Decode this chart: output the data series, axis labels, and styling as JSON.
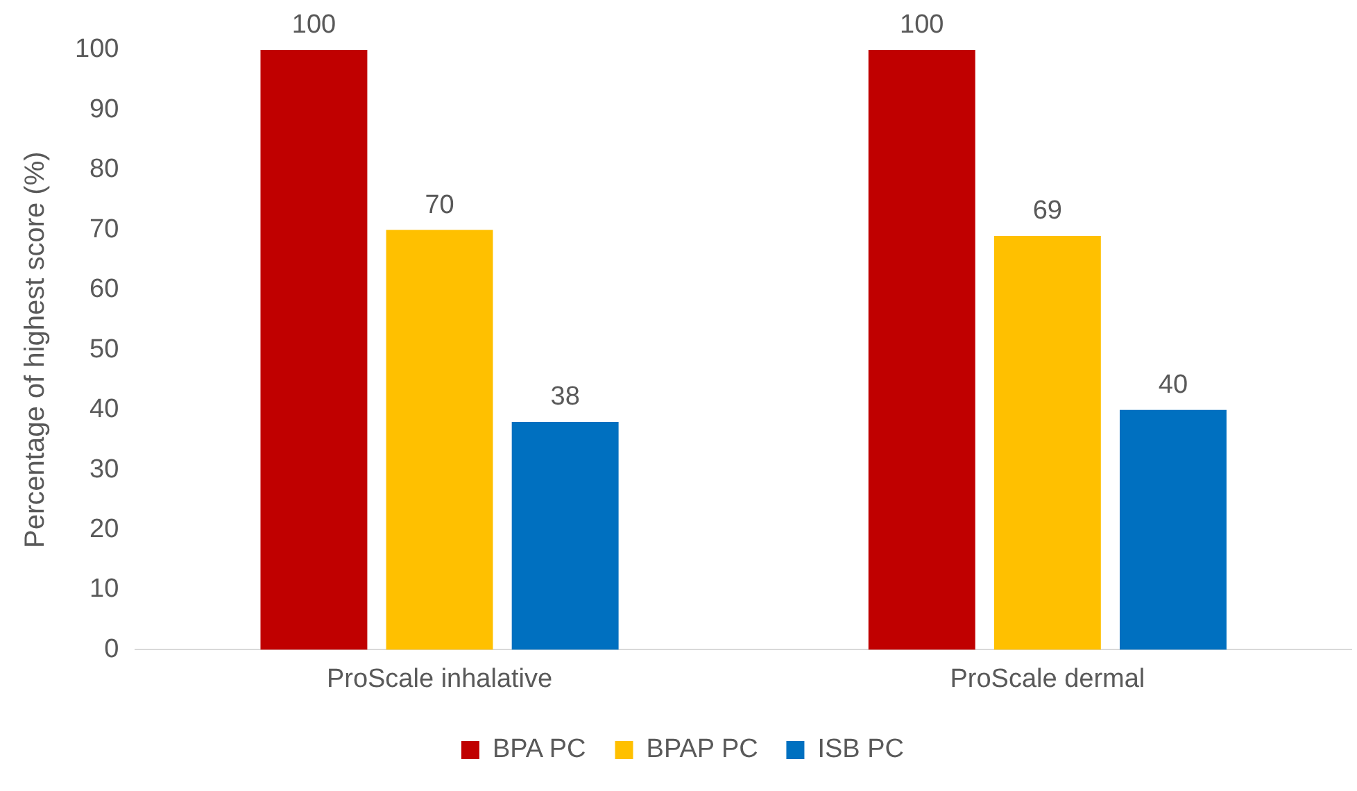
{
  "chart_data": {
    "type": "bar",
    "ylabel": "Percentage of highest score (%)",
    "categories": [
      "ProScale inhalative",
      "ProScale dermal"
    ],
    "series": [
      {
        "name": "BPA PC",
        "color": "#c00000",
        "values": [
          100,
          100
        ]
      },
      {
        "name": "BPAP PC",
        "color": "#ffc000",
        "values": [
          70,
          69
        ]
      },
      {
        "name": "ISB PC",
        "color": "#0070c0",
        "values": [
          38,
          40
        ]
      }
    ],
    "ylim": [
      0,
      100
    ],
    "yticks": [
      0,
      10,
      20,
      30,
      40,
      50,
      60,
      70,
      80,
      90,
      100
    ],
    "grid": false,
    "legend": "bottom",
    "data_labels": true
  }
}
